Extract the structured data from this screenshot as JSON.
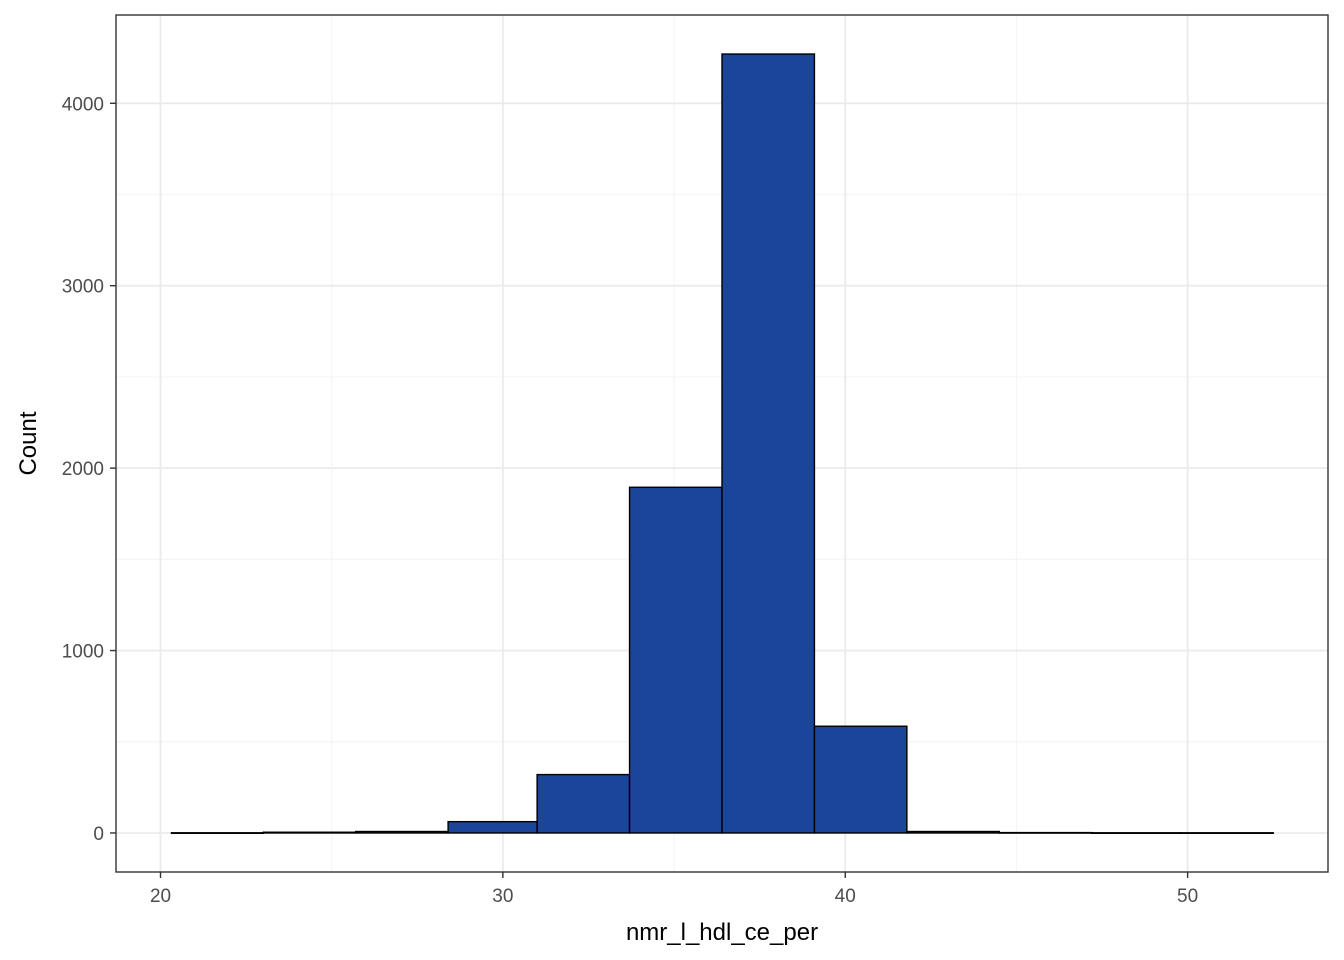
{
  "chart_data": {
    "type": "bar",
    "xlabel": "nmr_l_hdl_ce_per",
    "ylabel": "Count",
    "bins": [
      {
        "x0": 20.32,
        "x1": 23.0,
        "count": 1
      },
      {
        "x0": 23.0,
        "x1": 25.7,
        "count": 4
      },
      {
        "x0": 25.7,
        "x1": 28.4,
        "count": 8
      },
      {
        "x0": 28.4,
        "x1": 31.0,
        "count": 62
      },
      {
        "x0": 31.0,
        "x1": 33.7,
        "count": 320
      },
      {
        "x0": 33.7,
        "x1": 36.4,
        "count": 1895
      },
      {
        "x0": 36.4,
        "x1": 39.1,
        "count": 4270
      },
      {
        "x0": 39.1,
        "x1": 41.8,
        "count": 585
      },
      {
        "x0": 41.8,
        "x1": 44.5,
        "count": 8
      },
      {
        "x0": 44.5,
        "x1": 47.2,
        "count": 2
      },
      {
        "x0": 47.2,
        "x1": 49.8,
        "count": 1
      },
      {
        "x0": 49.8,
        "x1": 52.5,
        "count": 1
      }
    ],
    "xlim": [
      18.7,
      54.1
    ],
    "ylim": [
      -214,
      4484
    ],
    "xticks": [
      20,
      30,
      40,
      50
    ],
    "xminor": [
      25,
      35,
      45
    ],
    "yticks": [
      0,
      1000,
      2000,
      3000,
      4000
    ],
    "yminor": [
      500,
      1500,
      2500,
      3500
    ],
    "grid": true,
    "colors": {
      "bar_fill": "#1a4599",
      "bar_stroke": "#000000",
      "grid_major": "#ebebeb",
      "grid_minor": "#f5f5f5",
      "panel_border": "#333333"
    }
  }
}
